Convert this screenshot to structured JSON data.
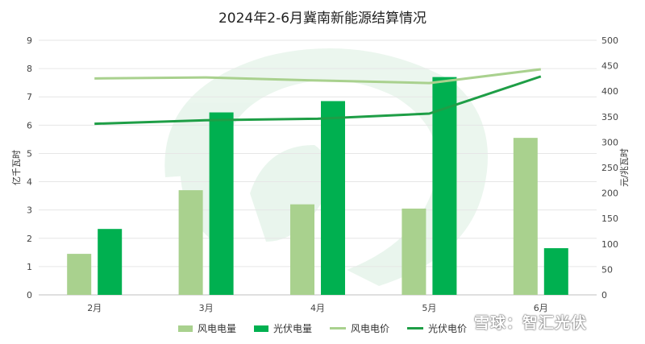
{
  "chart_data": {
    "type": "bar",
    "title": "2024年2-6月冀南新能源结算情况",
    "categories": [
      "2月",
      "3月",
      "4月",
      "5月",
      "6月"
    ],
    "ylabel": "亿千瓦时",
    "ylabel_right": "元/兆瓦时",
    "ylim": [
      0,
      9
    ],
    "ylim_right": [
      0,
      500
    ],
    "yticks": [
      0,
      1,
      2,
      3,
      4,
      5,
      6,
      7,
      8,
      9
    ],
    "yticks_right": [
      0,
      50,
      100,
      150,
      200,
      250,
      300,
      350,
      400,
      450,
      500
    ],
    "grid": true,
    "legend_position": "bottom",
    "bar_series": [
      {
        "name": "风电电量",
        "color": "#a9d18e",
        "values": [
          1.45,
          3.7,
          3.2,
          3.05,
          5.55
        ]
      },
      {
        "name": "光伏电量",
        "color": "#00b050",
        "values": [
          2.33,
          6.45,
          6.85,
          7.7,
          1.65
        ]
      }
    ],
    "line_series": [
      {
        "name": "风电电价",
        "color": "#a9d18e",
        "axis": "right",
        "values": [
          425,
          427,
          421,
          416,
          443
        ]
      },
      {
        "name": "光伏电价",
        "color": "#1e9e46",
        "axis": "right",
        "values": [
          336,
          343,
          346,
          356,
          429
        ]
      }
    ]
  },
  "watermark": "雪球：智汇光伏"
}
